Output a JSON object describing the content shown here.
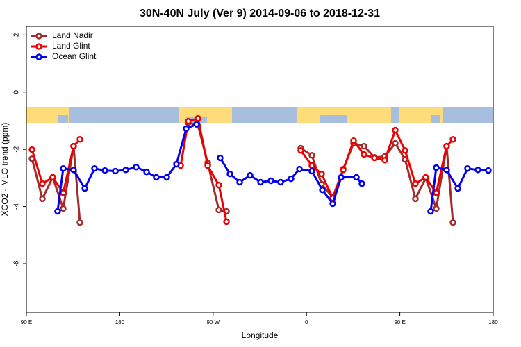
{
  "chart_data": {
    "type": "line",
    "title": "30N-40N July (Ver 9)   2014-09-06 to 2018-12-31",
    "x_label": "Longitude",
    "y_label": "XCO2 - MLO trend (ppm)",
    "xlim": [
      90,
      540
    ],
    "xticks": [
      {
        "value": 90,
        "label": "90 E"
      },
      180,
      {
        "value": 270,
        "label": "90 W"
      },
      {
        "value": 360,
        "label": "0"
      },
      {
        "value": 450,
        "label": "90 E"
      },
      {
        "value": 540,
        "label": "180"
      }
    ],
    "ylim": [
      -7.7,
      2.3
    ],
    "yticks": [
      2,
      0,
      -2,
      -4,
      -6
    ],
    "legend": "top-left",
    "series": [
      {
        "name": "Land Nadir",
        "color": "#a52a2a",
        "x": [
          95.4,
          105.4,
          115.4,
          125.5,
          135.5,
          141.6,
          null,
          246,
          255.4,
          264.8,
          275.5,
          282.9,
          null,
          354.5,
          365.2,
          374.6,
          385.3,
          395.4,
          405.4,
          415.5,
          425.5,
          435.5,
          445.6,
          455,
          465,
          475,
          485.1,
          495.1,
          501.2
        ],
        "values": [
          -2.33,
          -3.73,
          -2.98,
          -4.07,
          -1.89,
          -4.56,
          null,
          -1.07,
          -1.16,
          -2.47,
          -4.12,
          -4.17,
          null,
          -1.96,
          -2.21,
          -3.22,
          -3.68,
          -2.69,
          -1.79,
          -1.89,
          -2.28,
          -2.25,
          -1.79,
          -2.35,
          -3.73,
          -3.0,
          -4.07,
          -1.89,
          -4.56
        ]
      },
      {
        "name": "Land Glint",
        "color": "#ee0000",
        "x": [
          95.4,
          105.4,
          115.4,
          125.5,
          135.5,
          141.6,
          null,
          238.7,
          246,
          255.4,
          264.8,
          275.5,
          282.9,
          null,
          354.5,
          365.2,
          374.6,
          385.3,
          395.4,
          405.4,
          415.5,
          425.5,
          435.5,
          445.6,
          455,
          465,
          475,
          485.1,
          495.1,
          501.2
        ],
        "values": [
          -2.01,
          -3.2,
          -2.98,
          -3.52,
          -1.89,
          -1.65,
          null,
          -2.57,
          -1.02,
          -0.92,
          -2.57,
          -3.25,
          -4.53,
          null,
          -2.04,
          -2.57,
          -2.86,
          -3.71,
          -2.72,
          -1.7,
          -2.18,
          -2.3,
          -2.38,
          -1.33,
          -2.04,
          -3.2,
          -2.98,
          -3.52,
          -1.89,
          -1.65
        ]
      },
      {
        "name": "Ocean Glint",
        "color": "#0000ee",
        "x": [
          120.1,
          125.5,
          135.5,
          146.3,
          155.6,
          165.7,
          175.7,
          185.8,
          195.8,
          205.9,
          215.2,
          225.3,
          234.6,
          244,
          254.1,
          null,
          276.8,
          286.2,
          295.6,
          305.6,
          315.7,
          325.7,
          335.1,
          345.1,
          353.2,
          365.2,
          375.3,
          385.3,
          393.4,
          408.1,
          413.4,
          null,
          479.7,
          485.1,
          495.1,
          505.9,
          515.2,
          525.3,
          535.3
        ],
        "values": [
          -4.17,
          -2.67,
          -2.72,
          -3.37,
          -2.67,
          -2.74,
          -2.76,
          -2.72,
          -2.62,
          -2.79,
          -2.98,
          -2.98,
          -2.52,
          -1.28,
          -1.12,
          null,
          -2.3,
          -2.86,
          -3.15,
          -2.91,
          -3.15,
          -3.1,
          -3.15,
          -3.03,
          -2.69,
          -2.76,
          -3.42,
          -3.9,
          -2.98,
          -2.98,
          -3.2,
          null,
          -4.17,
          -2.64,
          -2.72,
          -3.37,
          -2.67,
          -2.72,
          -2.74
        ]
      }
    ]
  }
}
